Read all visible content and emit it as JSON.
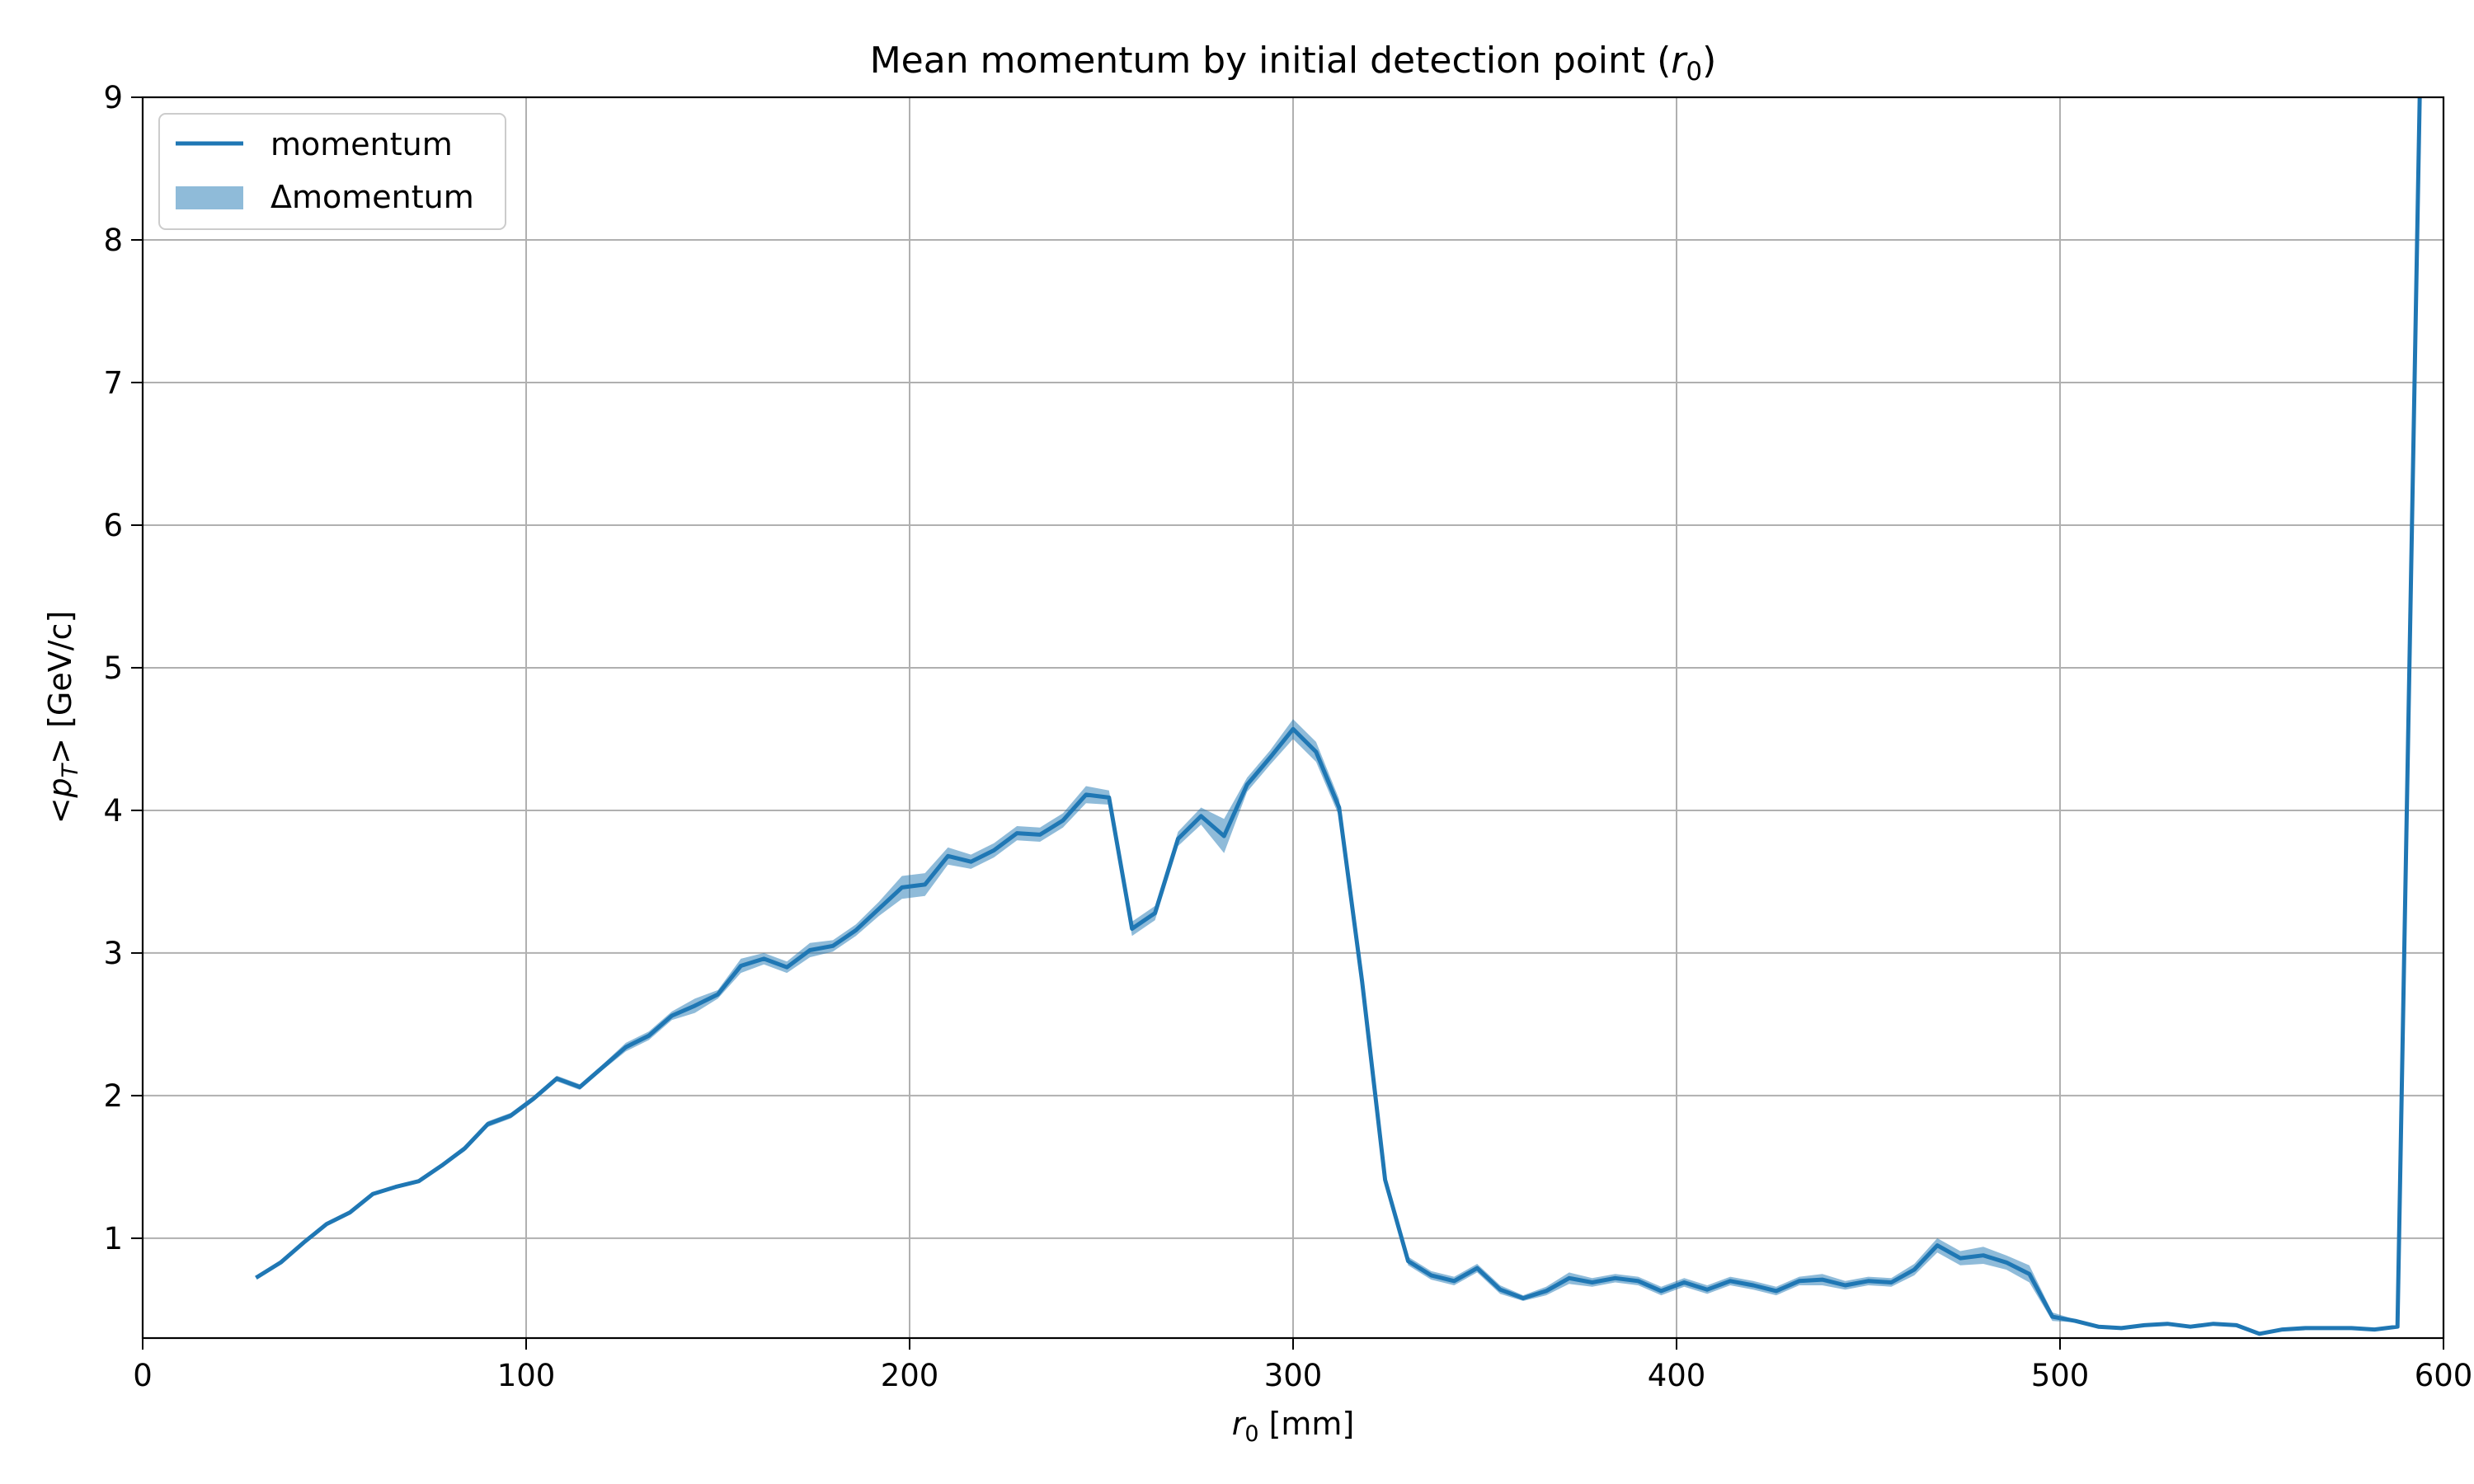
{
  "chart_data": {
    "type": "line",
    "title_main": "Mean momentum by initial detection point (",
    "title_var": "r",
    "title_sub": "0",
    "title_end": ")",
    "xlabel_var": "r",
    "xlabel_sub": "0",
    "xlabel_unit": " [mm]",
    "ylabel_pre": "<",
    "ylabel_var": "p",
    "ylabel_sub": "T",
    "ylabel_post": "> [GeV/c]",
    "xlim": [
      0,
      600
    ],
    "ylim": [
      0.3,
      9
    ],
    "xticks": [
      0,
      100,
      200,
      300,
      400,
      500,
      600
    ],
    "yticks": [
      1,
      2,
      3,
      4,
      5,
      6,
      7,
      8,
      9
    ],
    "grid": true,
    "legend_position": "top-left",
    "colors": {
      "line": "#1f77b4",
      "band": "#1f77b4",
      "grid": "#b0b0b0"
    },
    "series": [
      {
        "name": "momentum",
        "kind": "line"
      },
      {
        "name": "Δmomentum",
        "kind": "band"
      }
    ],
    "x": [
      30,
      36,
      42,
      48,
      54,
      60,
      66,
      72,
      78,
      84,
      90,
      96,
      102,
      108,
      114,
      120,
      126,
      132,
      138,
      144,
      150,
      156,
      162,
      168,
      174,
      180,
      186,
      192,
      198,
      204,
      210,
      216,
      222,
      228,
      234,
      240,
      246,
      252,
      258,
      264,
      270,
      276,
      282,
      288,
      294,
      300,
      306,
      312,
      318,
      324,
      330,
      336,
      342,
      348,
      354,
      360,
      366,
      372,
      378,
      384,
      390,
      396,
      402,
      408,
      414,
      420,
      426,
      432,
      438,
      444,
      450,
      456,
      462,
      468,
      474,
      480,
      486,
      492,
      498,
      504,
      510,
      516,
      522,
      528,
      534,
      540,
      546,
      552,
      558,
      564,
      570,
      576,
      582,
      588,
      594
    ],
    "values": [
      0.73,
      0.83,
      0.97,
      1.1,
      1.18,
      1.31,
      1.36,
      1.4,
      1.51,
      1.63,
      1.8,
      1.86,
      1.98,
      2.12,
      2.06,
      2.2,
      2.34,
      2.42,
      2.56,
      2.63,
      2.71,
      2.91,
      2.96,
      2.9,
      3.02,
      3.05,
      3.16,
      3.31,
      3.46,
      3.48,
      3.68,
      3.64,
      3.72,
      3.84,
      3.83,
      3.93,
      4.11,
      4.09,
      3.17,
      3.28,
      3.8,
      3.96,
      3.82,
      4.18,
      4.37,
      4.57,
      4.41,
      4.02,
      2.8,
      1.41,
      0.84,
      0.74,
      0.7,
      0.79,
      0.64,
      0.58,
      0.63,
      0.72,
      0.69,
      0.72,
      0.7,
      0.63,
      0.69,
      0.64,
      0.7,
      0.67,
      0.63,
      0.7,
      0.71,
      0.67,
      0.7,
      0.69,
      0.78,
      0.95,
      0.86,
      0.88,
      0.83,
      0.75,
      0.45,
      0.42,
      0.38,
      0.37,
      0.39,
      0.4,
      0.38,
      0.4,
      0.39,
      0.33,
      0.36,
      0.37,
      0.37,
      0.37,
      0.36,
      0.38,
      9.3
    ],
    "errors": [
      0.01,
      0.01,
      0.01,
      0.01,
      0.01,
      0.01,
      0.01,
      0.01,
      0.01,
      0.02,
      0.02,
      0.02,
      0.02,
      0.02,
      0.02,
      0.02,
      0.03,
      0.03,
      0.03,
      0.05,
      0.03,
      0.05,
      0.04,
      0.04,
      0.05,
      0.04,
      0.04,
      0.05,
      0.08,
      0.08,
      0.06,
      0.05,
      0.05,
      0.05,
      0.05,
      0.05,
      0.06,
      0.05,
      0.05,
      0.05,
      0.05,
      0.06,
      0.12,
      0.05,
      0.05,
      0.07,
      0.07,
      0.06,
      0.05,
      0.03,
      0.03,
      0.03,
      0.03,
      0.03,
      0.03,
      0.02,
      0.03,
      0.04,
      0.03,
      0.03,
      0.03,
      0.03,
      0.03,
      0.03,
      0.03,
      0.03,
      0.03,
      0.03,
      0.04,
      0.03,
      0.03,
      0.03,
      0.04,
      0.05,
      0.05,
      0.06,
      0.05,
      0.06,
      0.03,
      0.01,
      0.01,
      0.01,
      0.01,
      0.01,
      0.01,
      0.01,
      0.01,
      0.01,
      0.01,
      0.01,
      0.01,
      0.01,
      0.01,
      0.01,
      0.01
    ]
  }
}
